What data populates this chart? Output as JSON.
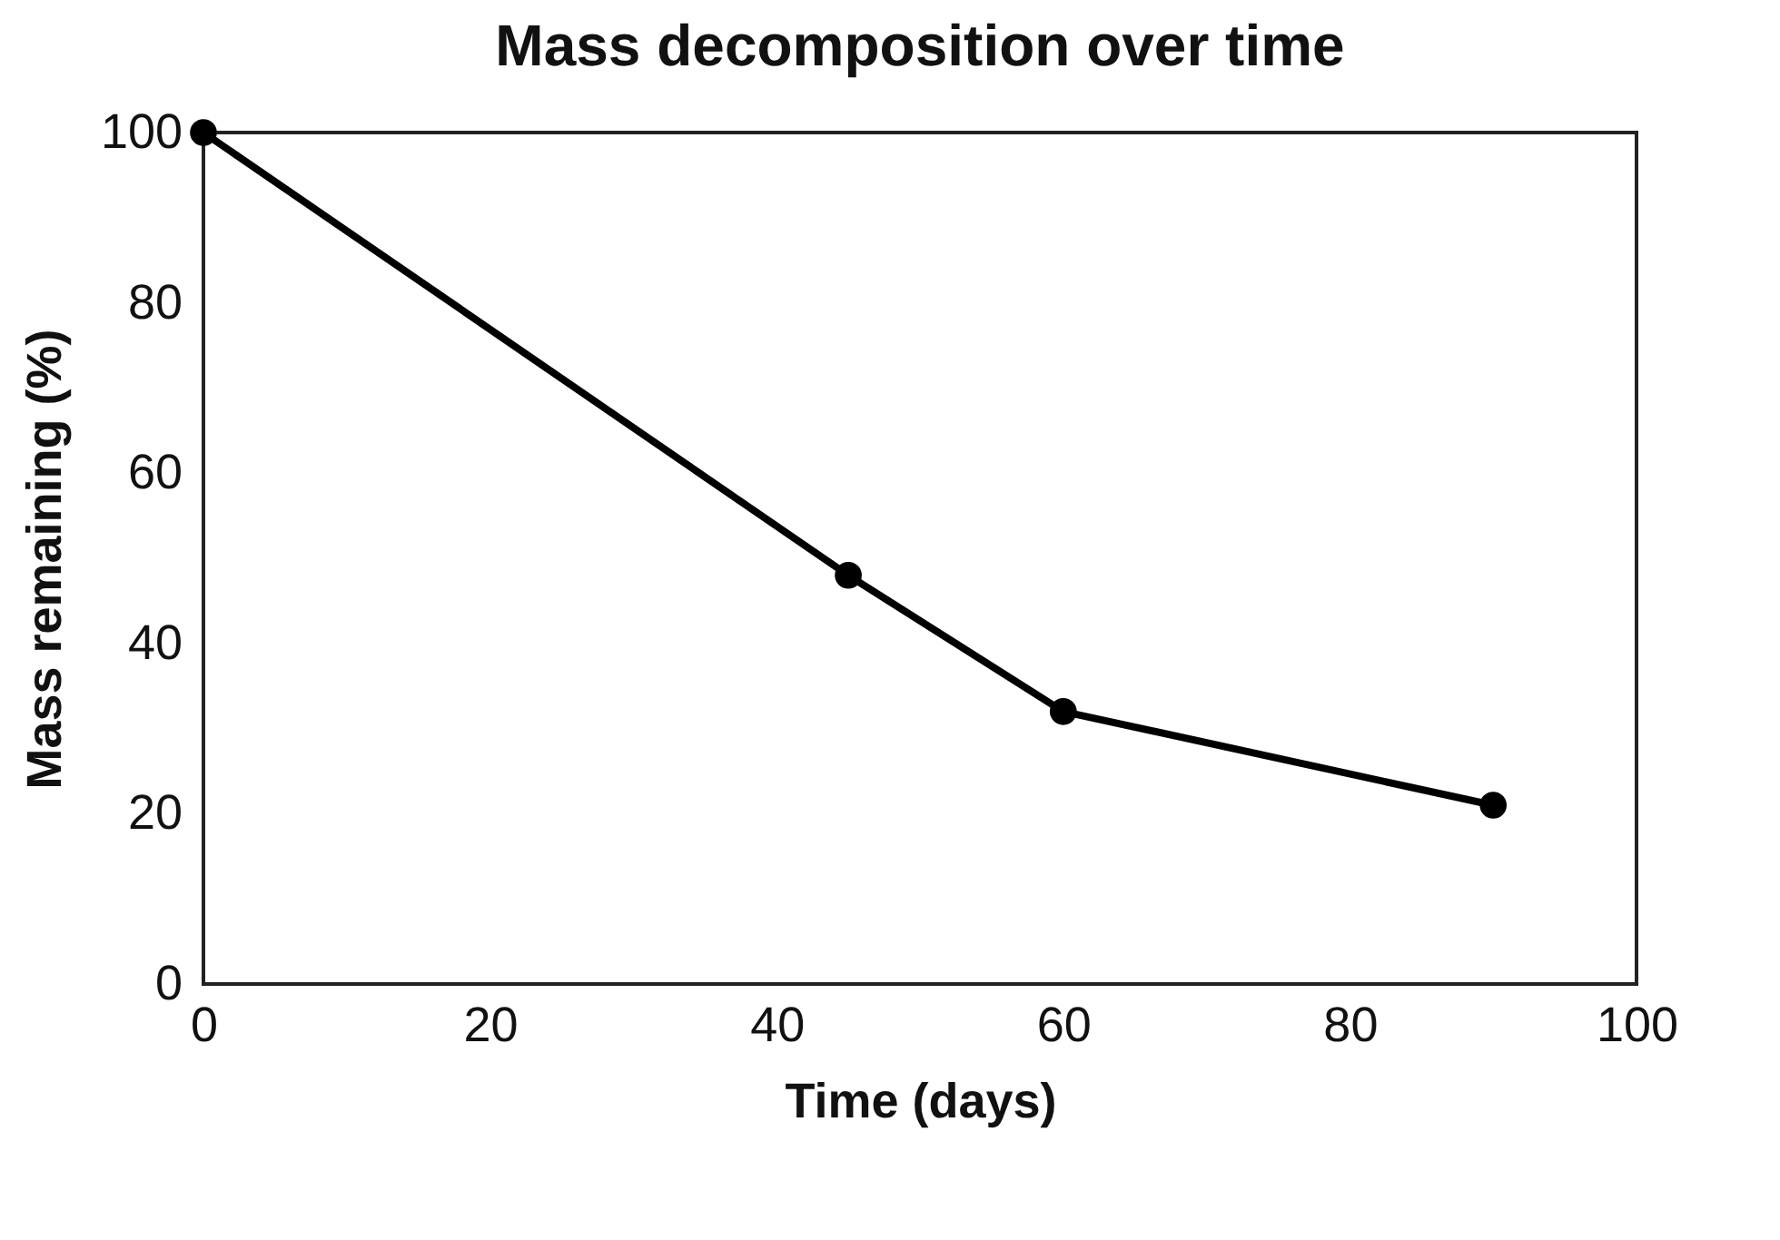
{
  "chart_data": {
    "type": "line",
    "title": "Mass decomposition over time",
    "xlabel": "Time (days)",
    "ylabel": "Mass remaining (%)",
    "x": [
      0,
      45,
      60,
      90
    ],
    "series": [
      {
        "color": "#000000",
        "values": [
          100,
          48,
          32,
          21
        ]
      }
    ],
    "xlim": [
      0,
      100
    ],
    "xticks": [
      0,
      20,
      40,
      60,
      80,
      100
    ],
    "ylim": [
      0,
      100
    ],
    "yticks": [
      0,
      20,
      40,
      60,
      80,
      100
    ],
    "grid": false,
    "legend": false,
    "marker": "circle",
    "line_style": "solid"
  }
}
